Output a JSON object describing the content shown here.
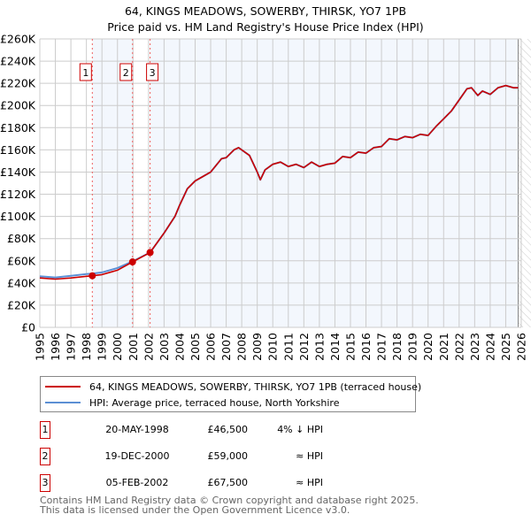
{
  "chart_data": {
    "type": "line",
    "title": "64, KINGS MEADOWS, SOWERBY, THIRSK, YO7 1PB",
    "subtitle": "Price paid vs. HM Land Registry's House Price Index (HPI)",
    "xlim": [
      1995,
      2026
    ],
    "ylim": [
      0,
      260000
    ],
    "y_ticks": [
      "£0",
      "£20K",
      "£40K",
      "£60K",
      "£80K",
      "£100K",
      "£120K",
      "£140K",
      "£160K",
      "£180K",
      "£200K",
      "£220K",
      "£240K",
      "£260K"
    ],
    "x_ticks": [
      "1995",
      "1996",
      "1997",
      "1998",
      "1999",
      "2000",
      "2001",
      "2002",
      "2003",
      "2004",
      "2005",
      "2006",
      "2007",
      "2008",
      "2009",
      "2010",
      "2011",
      "2012",
      "2013",
      "2014",
      "2015",
      "2016",
      "2017",
      "2018",
      "2019",
      "2020",
      "2021",
      "2022",
      "2023",
      "2024",
      "2025",
      "2026"
    ],
    "grid": true,
    "x": [
      1995,
      1996,
      1997,
      1998,
      1998.38,
      1999,
      2000,
      2000.97,
      2002.1,
      2003,
      2003.7,
      2004,
      2004.5,
      2005,
      2006,
      2006.7,
      2007,
      2007.5,
      2007.8,
      2008.5,
      2009,
      2009.2,
      2009.5,
      2010,
      2010.5,
      2011,
      2011.5,
      2012,
      2012.5,
      2013,
      2013.5,
      2014,
      2014.5,
      2015,
      2015.5,
      2016,
      2016.5,
      2017,
      2017.5,
      2018,
      2018.5,
      2019,
      2019.5,
      2020,
      2020.5,
      2021,
      2021.5,
      2022,
      2022.5,
      2022.8,
      2023.2,
      2023.5,
      2024,
      2024.5,
      2025,
      2025.5,
      2025.8
    ],
    "series": [
      {
        "name": "64, KINGS MEADOWS, SOWERBY, THIRSK, YO7 1PB (terraced house)",
        "color": "#cc0000",
        "values": [
          44500,
          43500,
          44500,
          46000,
          46500,
          47500,
          51500,
          59000,
          67500,
          85000,
          100000,
          110000,
          125000,
          132000,
          140000,
          152000,
          153000,
          160000,
          162000,
          155000,
          140000,
          133000,
          142000,
          147000,
          149000,
          145000,
          147000,
          144000,
          149000,
          145000,
          147000,
          148000,
          154000,
          153000,
          158000,
          157000,
          162000,
          163000,
          170000,
          169000,
          172000,
          171000,
          174000,
          173000,
          181000,
          188000,
          195000,
          205000,
          215000,
          216000,
          209000,
          213000,
          210000,
          216000,
          218000,
          216000,
          216000
        ]
      },
      {
        "name": "HPI: Average price, terraced house, North Yorkshire",
        "color": "#5b8fd4",
        "values": [
          46000,
          45000,
          46500,
          48000,
          48500,
          49500,
          53500,
          59500,
          67500,
          85000,
          100000,
          110000,
          125000,
          132000,
          140000,
          152000,
          153000,
          160000,
          162000,
          155000,
          140000,
          133000,
          142000,
          147000,
          149000,
          145000,
          147000,
          144000,
          149000,
          145000,
          147000,
          148000,
          154000,
          153000,
          158000,
          157000,
          162000,
          163000,
          170000,
          169000,
          172000,
          171000,
          174000,
          173000,
          181000,
          188000,
          195000,
          205000,
          215000,
          216000,
          209000,
          213000,
          210000,
          216000,
          218000,
          216000,
          216000
        ]
      }
    ],
    "sales": [
      {
        "label": "1",
        "x": 1998.38,
        "y": 46500,
        "date": "20-MAY-1998",
        "price": "£46,500",
        "hpi": "4% ↓ HPI"
      },
      {
        "label": "2",
        "x": 2000.97,
        "y": 59000,
        "date": "19-DEC-2000",
        "price": "£59,000",
        "hpi": "≈ HPI"
      },
      {
        "label": "3",
        "x": 2002.1,
        "y": 67500,
        "date": "05-FEB-2002",
        "price": "£67,500",
        "hpi": "≈ HPI"
      }
    ],
    "forecast_start": 2025.8
  },
  "footer": [
    "Contains HM Land Registry data © Crown copyright and database right 2025.",
    "This data is licensed under the Open Government Licence v3.0."
  ]
}
